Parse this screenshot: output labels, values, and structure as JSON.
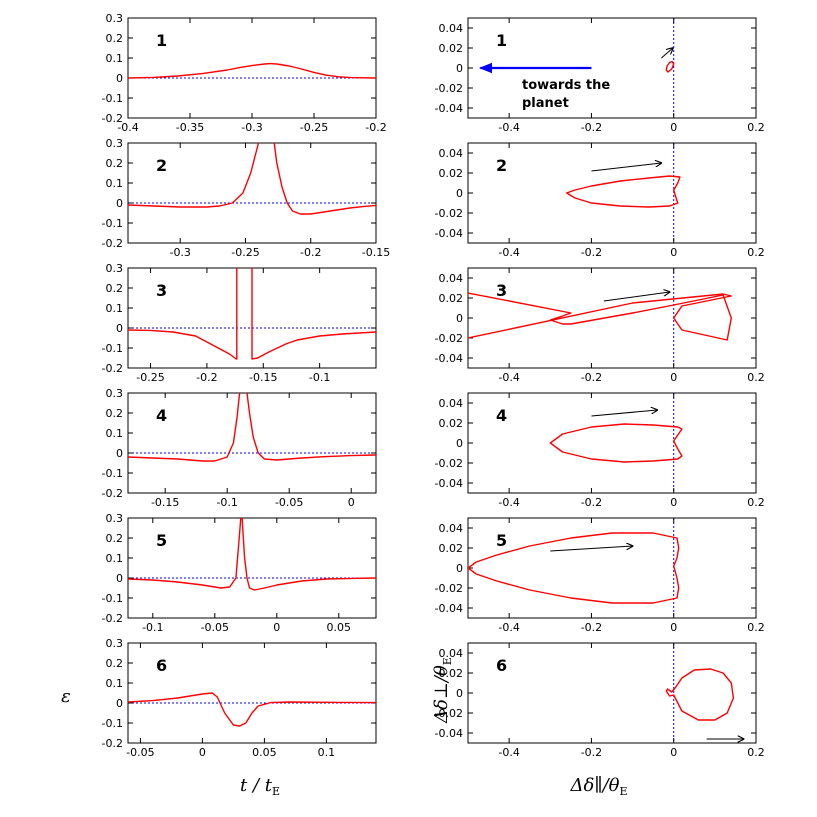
{
  "colors": {
    "curve": "#ff0000",
    "zero_line": "#0000ff",
    "arrow": "#000000",
    "planet_arrow": "#0000ff"
  },
  "axis_labels": {
    "left_y": "ε",
    "left_x_main": "t / t",
    "left_x_sub": "E",
    "right_y_main": "Δδ⊥/θ",
    "right_y_sub": "E",
    "right_x_main": "Δδ∥/θ",
    "right_x_sub": "E"
  },
  "planet_annotation": {
    "line1": "towards the",
    "line2": "planet"
  },
  "chart_data": [
    {
      "id": "L1",
      "type": "line",
      "column": "left",
      "label": "1",
      "xlim": [
        -0.4,
        -0.2
      ],
      "ylim": [
        -0.2,
        0.3
      ],
      "xticks": [
        -0.4,
        -0.35,
        -0.3,
        -0.25,
        -0.2
      ],
      "xtick_labels": [
        "-0.4",
        "-0.35",
        "-0.3",
        "-0.25",
        "-0.2"
      ],
      "yticks": [
        -0.2,
        -0.1,
        0,
        0.1,
        0.2,
        0.3
      ],
      "ytick_labels": [
        "-0.2",
        "-0.1",
        "0",
        "0.1",
        "0.2",
        "0.3"
      ],
      "series": [
        {
          "name": "epsilon",
          "x": [
            -0.4,
            -0.38,
            -0.36,
            -0.34,
            -0.32,
            -0.31,
            -0.3,
            -0.29,
            -0.285,
            -0.28,
            -0.27,
            -0.26,
            -0.25,
            -0.24,
            -0.23,
            -0.22,
            -0.2
          ],
          "y": [
            0,
            0.003,
            0.01,
            0.022,
            0.04,
            0.052,
            0.062,
            0.07,
            0.072,
            0.07,
            0.06,
            0.045,
            0.028,
            0.014,
            0.006,
            0.002,
            0
          ]
        }
      ]
    },
    {
      "id": "L2",
      "type": "line",
      "column": "left",
      "label": "2",
      "xlim": [
        -0.34,
        -0.15
      ],
      "ylim": [
        -0.2,
        0.3
      ],
      "xticks": [
        -0.3,
        -0.25,
        -0.2,
        -0.15
      ],
      "xtick_labels": [
        "-0.3",
        "-0.25",
        "-0.2",
        "-0.15"
      ],
      "yticks": [
        -0.2,
        -0.1,
        0,
        0.1,
        0.2,
        0.3
      ],
      "ytick_labels": [
        "-0.2",
        "-0.1",
        "0",
        "0.1",
        "0.2",
        "0.3"
      ],
      "series": [
        {
          "name": "epsilon",
          "segments": [
            {
              "x": [
                -0.34,
                -0.32,
                -0.3,
                -0.28,
                -0.27,
                -0.26,
                -0.252,
                -0.246,
                -0.242,
                -0.24
              ],
              "y": [
                -0.01,
                -0.015,
                -0.02,
                -0.02,
                -0.015,
                0,
                0.05,
                0.15,
                0.25,
                0.3
              ]
            },
            {
              "x": [
                -0.228,
                -0.226,
                -0.222,
                -0.218,
                -0.214,
                -0.208,
                -0.2,
                -0.19,
                -0.18,
                -0.17,
                -0.16,
                -0.15
              ],
              "y": [
                0.3,
                0.2,
                0.08,
                0,
                -0.04,
                -0.055,
                -0.055,
                -0.045,
                -0.035,
                -0.025,
                -0.018,
                -0.012
              ]
            }
          ]
        }
      ]
    },
    {
      "id": "L3",
      "type": "line",
      "column": "left",
      "label": "3",
      "xlim": [
        -0.27,
        -0.05
      ],
      "ylim": [
        -0.2,
        0.3
      ],
      "xticks": [
        -0.25,
        -0.2,
        -0.15,
        -0.1
      ],
      "xtick_labels": [
        "-0.25",
        "-0.2",
        "-0.15",
        "-0.1"
      ],
      "yticks": [
        -0.2,
        -0.1,
        0,
        0.1,
        0.2,
        0.3
      ],
      "ytick_labels": [
        "-0.2",
        "-0.1",
        "0",
        "0.1",
        "0.2",
        "0.3"
      ],
      "series": [
        {
          "name": "epsilon",
          "segments": [
            {
              "x": [
                -0.27,
                -0.25,
                -0.23,
                -0.21,
                -0.2,
                -0.19,
                -0.18,
                -0.174,
                -0.1735,
                -0.1735
              ],
              "y": [
                -0.01,
                -0.012,
                -0.02,
                -0.04,
                -0.07,
                -0.1,
                -0.13,
                -0.155,
                -0.155,
                0.3
              ]
            },
            {
              "x": [
                -0.16,
                -0.16,
                -0.155,
                -0.145,
                -0.13,
                -0.12,
                -0.1,
                -0.08,
                -0.05
              ],
              "y": [
                0.3,
                -0.155,
                -0.15,
                -0.12,
                -0.08,
                -0.06,
                -0.04,
                -0.03,
                -0.02
              ]
            }
          ]
        }
      ]
    },
    {
      "id": "L4",
      "type": "line",
      "column": "left",
      "label": "4",
      "xlim": [
        -0.18,
        0.02
      ],
      "ylim": [
        -0.2,
        0.3
      ],
      "xticks": [
        -0.15,
        -0.1,
        -0.05,
        0
      ],
      "xtick_labels": [
        "-0.15",
        "-0.1",
        "-0.05",
        "0"
      ],
      "yticks": [
        -0.2,
        -0.1,
        0,
        0.1,
        0.2,
        0.3
      ],
      "ytick_labels": [
        "-0.2",
        "-0.1",
        "0",
        "0.1",
        "0.2",
        "0.3"
      ],
      "series": [
        {
          "name": "epsilon",
          "segments": [
            {
              "x": [
                -0.18,
                -0.16,
                -0.14,
                -0.12,
                -0.11,
                -0.1,
                -0.095,
                -0.092,
                -0.09
              ],
              "y": [
                -0.02,
                -0.025,
                -0.03,
                -0.04,
                -0.04,
                -0.02,
                0.05,
                0.18,
                0.3
              ]
            },
            {
              "x": [
                -0.084,
                -0.082,
                -0.079,
                -0.075,
                -0.07,
                -0.06,
                -0.05,
                -0.04,
                -0.02,
                0,
                0.02
              ],
              "y": [
                0.3,
                0.2,
                0.08,
                0,
                -0.03,
                -0.035,
                -0.03,
                -0.025,
                -0.018,
                -0.013,
                -0.01
              ]
            }
          ]
        }
      ]
    },
    {
      "id": "L5",
      "type": "line",
      "column": "left",
      "label": "5",
      "xlim": [
        -0.12,
        0.08
      ],
      "ylim": [
        -0.2,
        0.3
      ],
      "xticks": [
        -0.1,
        -0.05,
        0,
        0.05
      ],
      "xtick_labels": [
        "-0.1",
        "-0.05",
        "0",
        "0.05"
      ],
      "yticks": [
        -0.2,
        -0.1,
        0,
        0.1,
        0.2,
        0.3
      ],
      "ytick_labels": [
        "-0.2",
        "-0.1",
        "0",
        "0.1",
        "0.2",
        "0.3"
      ],
      "series": [
        {
          "name": "epsilon",
          "x": [
            -0.12,
            -0.1,
            -0.08,
            -0.06,
            -0.045,
            -0.038,
            -0.033,
            -0.031,
            -0.029,
            -0.028,
            -0.026,
            -0.024,
            -0.022,
            -0.018,
            -0.01,
            0,
            0.02,
            0.04,
            0.06,
            0.08
          ],
          "y": [
            -0.005,
            -0.01,
            -0.02,
            -0.035,
            -0.05,
            -0.045,
            0,
            0.15,
            0.3,
            0.3,
            0.1,
            0,
            -0.05,
            -0.06,
            -0.05,
            -0.035,
            -0.015,
            -0.005,
            -0.002,
            0
          ]
        }
      ]
    },
    {
      "id": "L6",
      "type": "line",
      "column": "left",
      "label": "6",
      "xlim": [
        -0.06,
        0.14
      ],
      "ylim": [
        -0.2,
        0.3
      ],
      "xticks": [
        -0.05,
        0,
        0.05,
        0.1
      ],
      "xtick_labels": [
        "-0.05",
        "0",
        "0.05",
        "0.1"
      ],
      "yticks": [
        -0.2,
        -0.1,
        0,
        0.1,
        0.2,
        0.3
      ],
      "ytick_labels": [
        "-0.2",
        "-0.1",
        "0",
        "0.1",
        "0.2",
        "0.3"
      ],
      "series": [
        {
          "name": "epsilon",
          "x": [
            -0.06,
            -0.04,
            -0.02,
            0,
            0.008,
            0.012,
            0.018,
            0.025,
            0.03,
            0.035,
            0.04,
            0.045,
            0.055,
            0.07,
            0.09,
            0.11,
            0.14
          ],
          "y": [
            0.005,
            0.012,
            0.025,
            0.045,
            0.05,
            0.03,
            -0.05,
            -0.11,
            -0.115,
            -0.1,
            -0.05,
            -0.015,
            0.002,
            0.005,
            0.004,
            0.003,
            0.002
          ]
        }
      ]
    },
    {
      "id": "R1",
      "type": "line",
      "column": "right",
      "label": "1",
      "xlim": [
        -0.5,
        0.2
      ],
      "ylim": [
        -0.05,
        0.05
      ],
      "xticks": [
        -0.4,
        -0.2,
        0,
        0.2
      ],
      "xtick_labels": [
        "-0.4",
        "-0.2",
        "0",
        "0.2"
      ],
      "yticks": [
        -0.04,
        -0.02,
        0,
        0.02,
        0.04
      ],
      "ytick_labels": [
        "-0.04",
        "-0.02",
        "0",
        "0.02",
        "0.04"
      ],
      "series": [
        {
          "name": "centroid",
          "closed": true,
          "x": [
            0,
            -0.004,
            -0.01,
            -0.016,
            -0.018,
            -0.014,
            -0.005,
            0
          ],
          "y": [
            0.004,
            0.0065,
            0.0055,
            0.002,
            -0.002,
            -0.004,
            -0.001,
            0.004
          ]
        }
      ],
      "arrow": {
        "from": [
          -0.03,
          0.01
        ],
        "to": [
          -0.002,
          0.02
        ]
      },
      "planet_arrow": {
        "from": [
          -0.2,
          0
        ],
        "to": [
          -0.47,
          0
        ]
      }
    },
    {
      "id": "R2",
      "type": "line",
      "column": "right",
      "label": "2",
      "xlim": [
        -0.5,
        0.2
      ],
      "ylim": [
        -0.05,
        0.05
      ],
      "xticks": [
        -0.4,
        -0.2,
        0,
        0.2
      ],
      "xtick_labels": [
        "-0.4",
        "-0.2",
        "0",
        "0.2"
      ],
      "yticks": [
        -0.04,
        -0.02,
        0,
        0.02,
        0.04
      ],
      "ytick_labels": [
        "-0.04",
        "-0.02",
        "0",
        "0.02",
        "0.04"
      ],
      "series": [
        {
          "name": "centroid",
          "closed": true,
          "x": [
            0,
            0.01,
            0.015,
            -0.01,
            -0.06,
            -0.13,
            -0.2,
            -0.24,
            -0.26,
            -0.24,
            -0.2,
            -0.13,
            -0.06,
            -0.01,
            0.01,
            0.005,
            0
          ],
          "y": [
            0.003,
            0.01,
            0.016,
            0.017,
            0.015,
            0.012,
            0.007,
            0.003,
            0,
            -0.005,
            -0.01,
            -0.013,
            -0.014,
            -0.013,
            -0.01,
            -0.004,
            0.003
          ]
        }
      ],
      "arrow": {
        "from": [
          -0.2,
          0.022
        ],
        "to": [
          -0.03,
          0.03
        ]
      }
    },
    {
      "id": "R3",
      "type": "line",
      "column": "right",
      "label": "3",
      "xlim": [
        -0.5,
        0.2
      ],
      "ylim": [
        -0.05,
        0.05
      ],
      "xticks": [
        -0.4,
        -0.2,
        0,
        0.2
      ],
      "xtick_labels": [
        "-0.4",
        "-0.2",
        "0",
        "0.2"
      ],
      "yticks": [
        -0.04,
        -0.02,
        0,
        0.02,
        0.04
      ],
      "ytick_labels": [
        "-0.04",
        "-0.02",
        "0",
        "0.02",
        "0.04"
      ],
      "series": [
        {
          "name": "centroid",
          "closed": false,
          "x": [
            -0.5,
            -0.25,
            -0.27,
            -0.3,
            -0.27,
            -0.25,
            -0.1,
            0,
            0.12,
            0.14,
            0.13,
            0.02,
            0,
            0.02,
            0.14,
            0.12,
            -0.1,
            -0.5
          ],
          "y": [
            0.025,
            0.005,
            0.002,
            -0.002,
            -0.006,
            -0.006,
            0.005,
            0.013,
            0.023,
            0,
            -0.022,
            -0.012,
            0,
            0.012,
            0.022,
            0.024,
            0.015,
            -0.02
          ]
        }
      ],
      "arrow": {
        "from": [
          -0.17,
          0.017
        ],
        "to": [
          -0.01,
          0.026
        ]
      }
    },
    {
      "id": "R4",
      "type": "line",
      "column": "right",
      "label": "4",
      "xlim": [
        -0.5,
        0.2
      ],
      "ylim": [
        -0.05,
        0.05
      ],
      "xticks": [
        -0.4,
        -0.2,
        0,
        0.2
      ],
      "xtick_labels": [
        "-0.4",
        "-0.2",
        "0",
        "0.2"
      ],
      "yticks": [
        -0.04,
        -0.02,
        0,
        0.02,
        0.04
      ],
      "ytick_labels": [
        "-0.04",
        "-0.02",
        "0",
        "0.02",
        "0.04"
      ],
      "series": [
        {
          "name": "centroid",
          "closed": true,
          "x": [
            0,
            0.01,
            0.02,
            0.01,
            -0.05,
            -0.12,
            -0.2,
            -0.27,
            -0.3,
            -0.27,
            -0.2,
            -0.12,
            -0.05,
            0.01,
            0.02,
            0.01,
            0
          ],
          "y": [
            0.002,
            0.008,
            0.014,
            0.016,
            0.018,
            0.019,
            0.016,
            0.009,
            0,
            -0.009,
            -0.016,
            -0.019,
            -0.018,
            -0.016,
            -0.013,
            -0.006,
            0.002
          ]
        }
      ],
      "arrow": {
        "from": [
          -0.2,
          0.027
        ],
        "to": [
          -0.04,
          0.033
        ]
      }
    },
    {
      "id": "R5",
      "type": "line",
      "column": "right",
      "label": "5",
      "xlim": [
        -0.5,
        0.2
      ],
      "ylim": [
        -0.05,
        0.05
      ],
      "xticks": [
        -0.4,
        -0.2,
        0,
        0.2
      ],
      "xtick_labels": [
        "-0.4",
        "-0.2",
        "0",
        "0.2"
      ],
      "yticks": [
        -0.04,
        -0.02,
        0,
        0.02,
        0.04
      ],
      "ytick_labels": [
        "-0.04",
        "-0.02",
        "0",
        "0.02",
        "0.04"
      ],
      "series": [
        {
          "name": "centroid",
          "closed": true,
          "x": [
            0,
            0.008,
            0.012,
            0.008,
            -0.05,
            -0.15,
            -0.25,
            -0.35,
            -0.43,
            -0.48,
            -0.5,
            -0.48,
            -0.43,
            -0.35,
            -0.25,
            -0.15,
            -0.05,
            0.008,
            0.012,
            0.008,
            0
          ],
          "y": [
            0.002,
            0.01,
            0.02,
            0.03,
            0.035,
            0.035,
            0.03,
            0.022,
            0.013,
            0.006,
            0,
            -0.006,
            -0.013,
            -0.022,
            -0.03,
            -0.035,
            -0.035,
            -0.03,
            -0.02,
            -0.01,
            0.002
          ]
        }
      ],
      "arrow": {
        "from": [
          -0.3,
          0.017
        ],
        "to": [
          -0.1,
          0.022
        ]
      }
    },
    {
      "id": "R6",
      "type": "line",
      "column": "right",
      "label": "6",
      "xlim": [
        -0.5,
        0.2
      ],
      "ylim": [
        -0.05,
        0.05
      ],
      "xticks": [
        -0.4,
        -0.2,
        0,
        0.2
      ],
      "xtick_labels": [
        "-0.4",
        "-0.2",
        "0",
        "0.2"
      ],
      "yticks": [
        -0.04,
        -0.02,
        0,
        0.02,
        0.04
      ],
      "ytick_labels": [
        "-0.04",
        "-0.02",
        "0",
        "0.02",
        "0.04"
      ],
      "series": [
        {
          "name": "centroid",
          "closed": true,
          "x": [
            0,
            0.02,
            0.06,
            0.1,
            0.13,
            0.145,
            0.14,
            0.12,
            0.09,
            0.05,
            0.02,
            0.005,
            -0.005,
            -0.015,
            -0.018,
            -0.01,
            0
          ],
          "y": [
            -0.002,
            -0.018,
            -0.027,
            -0.027,
            -0.02,
            -0.005,
            0.01,
            0.02,
            0.024,
            0.023,
            0.015,
            0.006,
            0.001,
            0.004,
            0.002,
            -0.003,
            -0.002
          ]
        }
      ],
      "arrow": {
        "from": [
          0.08,
          -0.046
        ],
        "to": [
          0.17,
          -0.046
        ]
      }
    }
  ]
}
